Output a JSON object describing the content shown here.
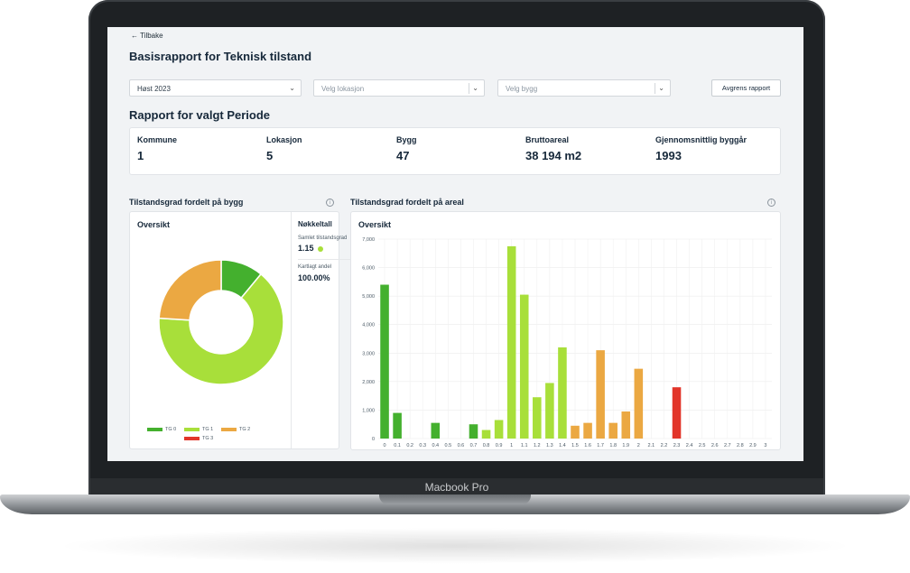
{
  "device_label": "Macbook Pro",
  "back_label": "Tilbake",
  "page_title": "Basisrapport for Teknisk tilstand",
  "filters": {
    "period": "Høst 2023",
    "location_placeholder": "Velg lokasjon",
    "building_placeholder": "Velg bygg",
    "refine_button": "Avgrens rapport"
  },
  "report_title": "Rapport for valgt Periode",
  "stats": [
    {
      "label": "Kommune",
      "value": "1"
    },
    {
      "label": "Lokasjon",
      "value": "5"
    },
    {
      "label": "Bygg",
      "value": "47"
    },
    {
      "label": "Bruttoareal",
      "value": "38 194 m2"
    },
    {
      "label": "Gjennomsnittlig byggår",
      "value": "1993"
    }
  ],
  "donut_section": {
    "title": "Tilstandsgrad fordelt på bygg",
    "card_title": "Oversikt",
    "key_figures_title": "Nøkkeltall",
    "overall_label": "Samlet tilstandsgrad",
    "overall_value": "1.15",
    "mapped_label": "Kartlagt andel",
    "mapped_value": "100.00%"
  },
  "bar_section": {
    "title": "Tilstandsgrad fordelt på areal",
    "card_title": "Oversikt"
  },
  "colors": {
    "TG 0": "#44b02e",
    "TG 1": "#a8df3a",
    "TG 2": "#eba842",
    "TG 3": "#e2352a"
  },
  "chart_data": [
    {
      "type": "pie",
      "categories": [
        "TG 0",
        "TG 1",
        "TG 2",
        "TG 3"
      ],
      "values": [
        11,
        65,
        24,
        0
      ],
      "legend": "bottom"
    },
    {
      "type": "bar",
      "x": [
        "0",
        "0.1",
        "0.2",
        "0.3",
        "0.4",
        "0.5",
        "0.6",
        "0.7",
        "0.8",
        "0.9",
        "1",
        "1.1",
        "1.2",
        "1.3",
        "1.4",
        "1.5",
        "1.6",
        "1.7",
        "1.8",
        "1.9",
        "2",
        "2.1",
        "2.2",
        "2.3",
        "2.4",
        "2.5",
        "2.6",
        "2.7",
        "2.8",
        "2.9",
        "3"
      ],
      "values": [
        5400,
        900,
        0,
        0,
        550,
        0,
        0,
        500,
        300,
        650,
        6750,
        5050,
        1450,
        1950,
        3200,
        450,
        550,
        3100,
        550,
        950,
        2450,
        0,
        0,
        1800,
        0,
        0,
        0,
        0,
        0,
        0,
        0
      ],
      "categories": [
        "TG 0",
        "TG 0",
        "TG 0",
        "TG 0",
        "TG 0",
        "TG 0",
        "TG 0",
        "TG 0",
        "TG 1",
        "TG 1",
        "TG 1",
        "TG 1",
        "TG 1",
        "TG 1",
        "TG 1",
        "TG 2",
        "TG 2",
        "TG 2",
        "TG 2",
        "TG 2",
        "TG 2",
        "TG 2",
        "TG 2",
        "TG 3",
        "TG 3",
        "TG 3",
        "TG 3",
        "TG 3",
        "TG 3",
        "TG 3",
        "TG 3"
      ],
      "yticks": [
        "0",
        "1,000",
        "2,000",
        "3,000",
        "4,000",
        "5,000",
        "6,000",
        "7,000"
      ],
      "ylim": [
        0,
        7000
      ],
      "grid": true
    }
  ]
}
